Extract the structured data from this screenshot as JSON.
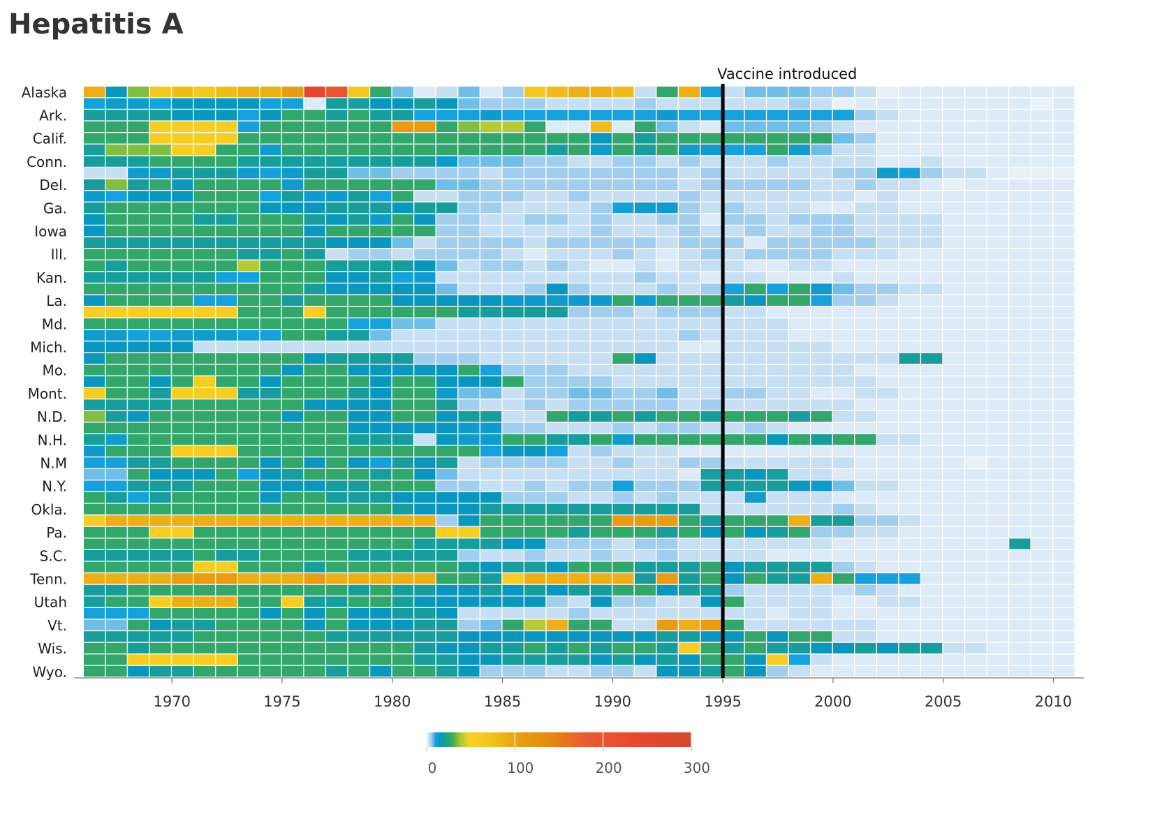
{
  "chart_data": {
    "type": "heatmap",
    "title": "Hepatitis A",
    "xlabel": "",
    "ylabel": "",
    "x_range": [
      1966,
      2011
    ],
    "x_ticks": [
      1970,
      1975,
      1980,
      1985,
      1990,
      1995,
      2000,
      2005,
      2010
    ],
    "row_count": 51,
    "row_labels_shown": [
      "Alaska",
      "Ark.",
      "Calif.",
      "Conn.",
      "Del.",
      "Ga.",
      "Iowa",
      "Ill.",
      "Kan.",
      "La.",
      "Md.",
      "Mich.",
      "Mo.",
      "Mont.",
      "N.D.",
      "N.H.",
      "N.M",
      "N.Y.",
      "Okla.",
      "Pa.",
      "S.C.",
      "Tenn.",
      "Utah",
      "Vt.",
      "Wis.",
      "Wyo."
    ],
    "annotation": {
      "text": "Vaccine introduced",
      "x": 1995
    },
    "colorbar": {
      "ticks": [
        0,
        100,
        200,
        300
      ],
      "range": [
        0,
        300
      ],
      "stops": [
        {
          "value": 0,
          "color": "#e8f1fa"
        },
        {
          "value": 3,
          "color": "#c6dff3"
        },
        {
          "value": 6,
          "color": "#8ec6ec"
        },
        {
          "value": 10,
          "color": "#16a0dc"
        },
        {
          "value": 16,
          "color": "#0b96bd"
        },
        {
          "value": 22,
          "color": "#1f9f8c"
        },
        {
          "value": 30,
          "color": "#46ad4c"
        },
        {
          "value": 38,
          "color": "#a5c83a"
        },
        {
          "value": 48,
          "color": "#f7d126"
        },
        {
          "value": 75,
          "color": "#f2c21e"
        },
        {
          "value": 100,
          "color": "#e8a312"
        },
        {
          "value": 140,
          "color": "#e5880f"
        },
        {
          "value": 180,
          "color": "#ec5a32"
        },
        {
          "value": 240,
          "color": "#e94730"
        },
        {
          "value": 300,
          "color": "#d34a2c"
        }
      ]
    },
    "data_rows_1966_to_2011": [
      "K8FIJIJKKLQOIB5A35A4IJKKJ3BK6355544312222222",
      "6776888866A998898544433334333333431222222221",
      "999988868BB9B9966676666666766666666432222222",
      "BBBHHHH6BBBBBBLLBFGGBDDJCB53A55554322222222",
      "BBBHHHHBBBBBBBBBBBBBBBB8B9BBBBBBBB5422222222",
      "9FFFHHBB7BBBBBBBBBBBB9B7B9B7766B7533222222222",
      "999BBBB9999999997555443344343334333322322222",
      "337799976799554444344444444343333344764332111",
      "9F9B8BBBB7BBBBBB5544444444434444433433212222",
      "76888BBB697796B3344433433334333333323222222",
      "9BBBBBBB8889998994433334677434333223322222222",
      "8BBBB99BBB9897B844334434334424434443333222222",
      "8BBBBBBBBB8BBBBB4433333433343343344333322222",
      "99999999999888534444344444344424444433322222",
      "BBBBBBB99B93443444432333432343444433322222",
      "B9BBBBBGBBB9999853443432232333223322222222",
      "99999966BBB88967333333333433233222322222222",
      "BBBBBBBBBB98888853334843334346B6B7544332222",
      "8BBBB66BB9BBBB8888877777B7BBB98BB64432222222",
      "HHHHHHHBBBHBBBBBB999994443444332222222222222",
      "BBBBBBBBBBBB66553333333333333333222222222222",
      "776677766BB99533333333333334333322222222222",
      "888883333333333333333333333223333322222222",
      "8BBBBBBBBB89999444333333B8333333333339922222",
      "BBBBBBBBB8BB88888B6444333333333333322222222",
      "8BB8BHBB8BBBB8BB888B44443333333333332222222",
      "HBB9HHH99BBB98BB755344554453344332233222222",
      "9999BBBBBB8888BB9433434444434333333222222222",
      "F98BBBBBB8BB88BB89933B99B9BB9BBB9B3322222222",
      "BBBBBBBBBBBB8888877443334344334322222222222",
      "97BBBBBBBBBB9993877BB99B7BBBBBB8B9BB33222222",
      "7BBBHHHBBBBBBBBBBB68863433322222222222222",
      "6699BBBB8B8B869893444433433443333332222212",
      "55B888B689BBB9B853333333333A998933222222222",
      "66999BBB88899BBB443343446444999987533222222",
      "B969BBBB8BB99988888444334343337333222222222",
      "BBBBBBBBBBBBBB988899999999993333334322222222",
      "HKKKKKKKKKKKKKKK48BBBBBBLLLB9BBBK9944322222222",
      "BBBHHBBBBBBBBBBBHHBBBB9BBB9B8B89B4433222222222",
      "BBBBBBBBBBBBBBB9999884443443333333222222229",
      "99999B99BBBB99999433433433433332222222222",
      "BBBBBHHBBB9BBBBBB98998BBB999B899994322222",
      "KKKKLLLKKKLKKKKKBB9HKKKKK9L9B8B99KB6662222222",
      "99BBBBBBBBBB9B9988989899BB8994333334322222222",
      "9BBHKKKBBH99BB988888843844338B3333223322222222",
      "666BBBBB8B8B88998333334333333332332222222",
      "55B899BBBB8B8889945BGKBB33LKLB333333222222222",
      "99999BBBBBB9999998888888889988B8BB3322222222222",
      "BB9BBBBBBBBBBBB98899B9B9BB9HB9B99889899332222222",
      "BBHHHHHBBBBBBBB9988999989898BB8H6322222222222",
      "BB899BBBBBB9B8BB9844433443889B843222222222222"
    ],
    "data_rows_key": "characters map to value bins: 1=0 2=1 3=3 4=5 5=7 6=10 7=13 8=16 9=20 B=26 F=35 G=40 H=55 I=65 J=80 K=90 L=110 M=130 N=150 O=200 P=220 Q=250"
  }
}
